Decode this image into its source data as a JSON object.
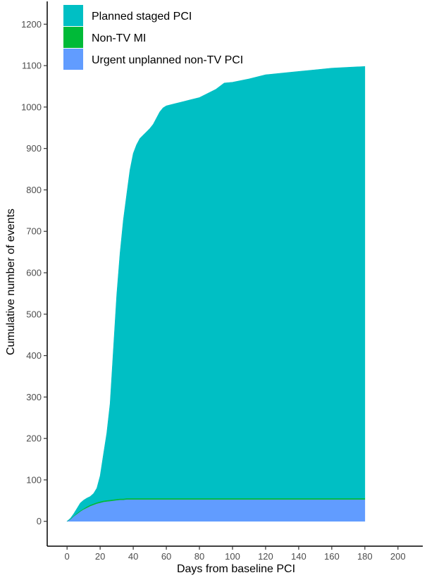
{
  "chart_data": {
    "type": "area",
    "stacked": true,
    "xlabel": "Days from baseline PCI",
    "ylabel": "Cumulative number of events",
    "xlim": [
      -12,
      215
    ],
    "ylim": [
      -60,
      1255
    ],
    "x_ticks": [
      0,
      20,
      40,
      60,
      80,
      100,
      120,
      140,
      160,
      180,
      200
    ],
    "y_ticks": [
      0,
      100,
      200,
      300,
      400,
      500,
      600,
      700,
      800,
      900,
      1000,
      1100,
      1200
    ],
    "grid": false,
    "legend_position": "top-left",
    "x": [
      0,
      2,
      4,
      6,
      8,
      10,
      12,
      14,
      16,
      18,
      20,
      22,
      24,
      26,
      28,
      30,
      32,
      34,
      36,
      38,
      40,
      42,
      44,
      46,
      48,
      50,
      52,
      54,
      56,
      58,
      60,
      65,
      70,
      75,
      80,
      85,
      90,
      95,
      100,
      110,
      120,
      130,
      140,
      150,
      160,
      170,
      180
    ],
    "series": [
      {
        "name": "Urgent unplanned non-TV PCI",
        "color": "#619CFF",
        "values": [
          0,
          5,
          12,
          18,
          24,
          29,
          33,
          37,
          40,
          43,
          45,
          47,
          48,
          49,
          50,
          51,
          52,
          52,
          53,
          53,
          53,
          53,
          53,
          53,
          53,
          53,
          53,
          53,
          53,
          53,
          53,
          53,
          53,
          53,
          53,
          53,
          53,
          53,
          53,
          53,
          53,
          53,
          53,
          53,
          53,
          53,
          53
        ]
      },
      {
        "name": "Non-TV MI",
        "color": "#00BA38",
        "values": [
          0,
          1,
          1,
          2,
          2,
          2,
          3,
          3,
          3,
          3,
          3,
          3,
          3,
          3,
          3,
          3,
          3,
          3,
          3,
          3,
          3,
          3,
          3,
          3,
          3,
          3,
          3,
          3,
          3,
          3,
          3,
          3,
          3,
          3,
          3,
          3,
          3,
          3,
          3,
          3,
          3,
          3,
          3,
          3,
          3,
          3,
          3
        ]
      },
      {
        "name": "Planned staged PCI",
        "color": "#00BFC4",
        "values": [
          0,
          1,
          5,
          11,
          18,
          20,
          20,
          20,
          24,
          34,
          62,
          112,
          162,
          232,
          362,
          492,
          592,
          672,
          732,
          792,
          832,
          853,
          868,
          876,
          884,
          892,
          902,
          917,
          932,
          942,
          947,
          952,
          957,
          962,
          967,
          977,
          987,
          1002,
          1004,
          1012,
          1022,
          1026,
          1030,
          1034,
          1038,
          1040,
          1042
        ]
      }
    ]
  }
}
